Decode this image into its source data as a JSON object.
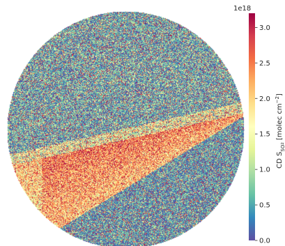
{
  "chart_data": {
    "type": "heatmap",
    "title": "",
    "shape": "circular disk",
    "colormap": "Spectral_r",
    "colorbar": {
      "label_prefix": "CD S",
      "label_sub": "SO",
      "label_sub2": "2",
      "label_suffix": " [molec cm",
      "label_sup": "−2",
      "label_close": "]",
      "offset_text": "1e18",
      "vmin": 0.0,
      "vmax": 3.2,
      "ticks": [
        "0.0",
        "0.5",
        "1.0",
        "1.5",
        "2.0",
        "2.5",
        "3.0"
      ],
      "tick_values": [
        0.0,
        0.5,
        1.0,
        1.5,
        2.0,
        2.5,
        3.0
      ],
      "placement": "right"
    },
    "regions": [
      {
        "name": "upper background",
        "value_range": [
          0.0,
          1.2
        ]
      },
      {
        "name": "diagonal enhanced band",
        "value_range": [
          1.8,
          3.2
        ]
      },
      {
        "name": "lower-right background",
        "value_range": [
          0.0,
          0.9
        ]
      }
    ],
    "axes_visible": false,
    "grid": false
  }
}
